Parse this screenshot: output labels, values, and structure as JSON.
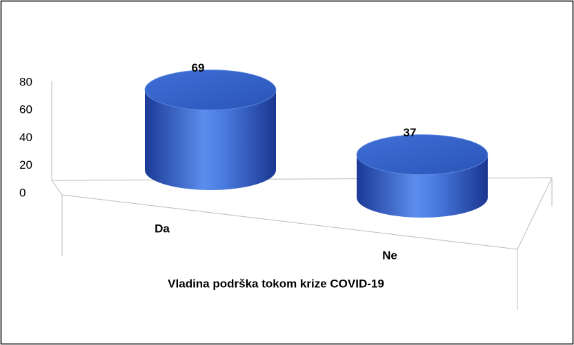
{
  "chart_data": {
    "type": "bar",
    "x_label": "Vladina podrška tokom krize COVID-19",
    "categories": [
      "Da",
      "Ne"
    ],
    "values": [
      69,
      37
    ],
    "color": "#3563c9",
    "ylim": [
      0,
      80
    ],
    "yticks": [
      0,
      20,
      40,
      60,
      80
    ],
    "grid": false
  }
}
